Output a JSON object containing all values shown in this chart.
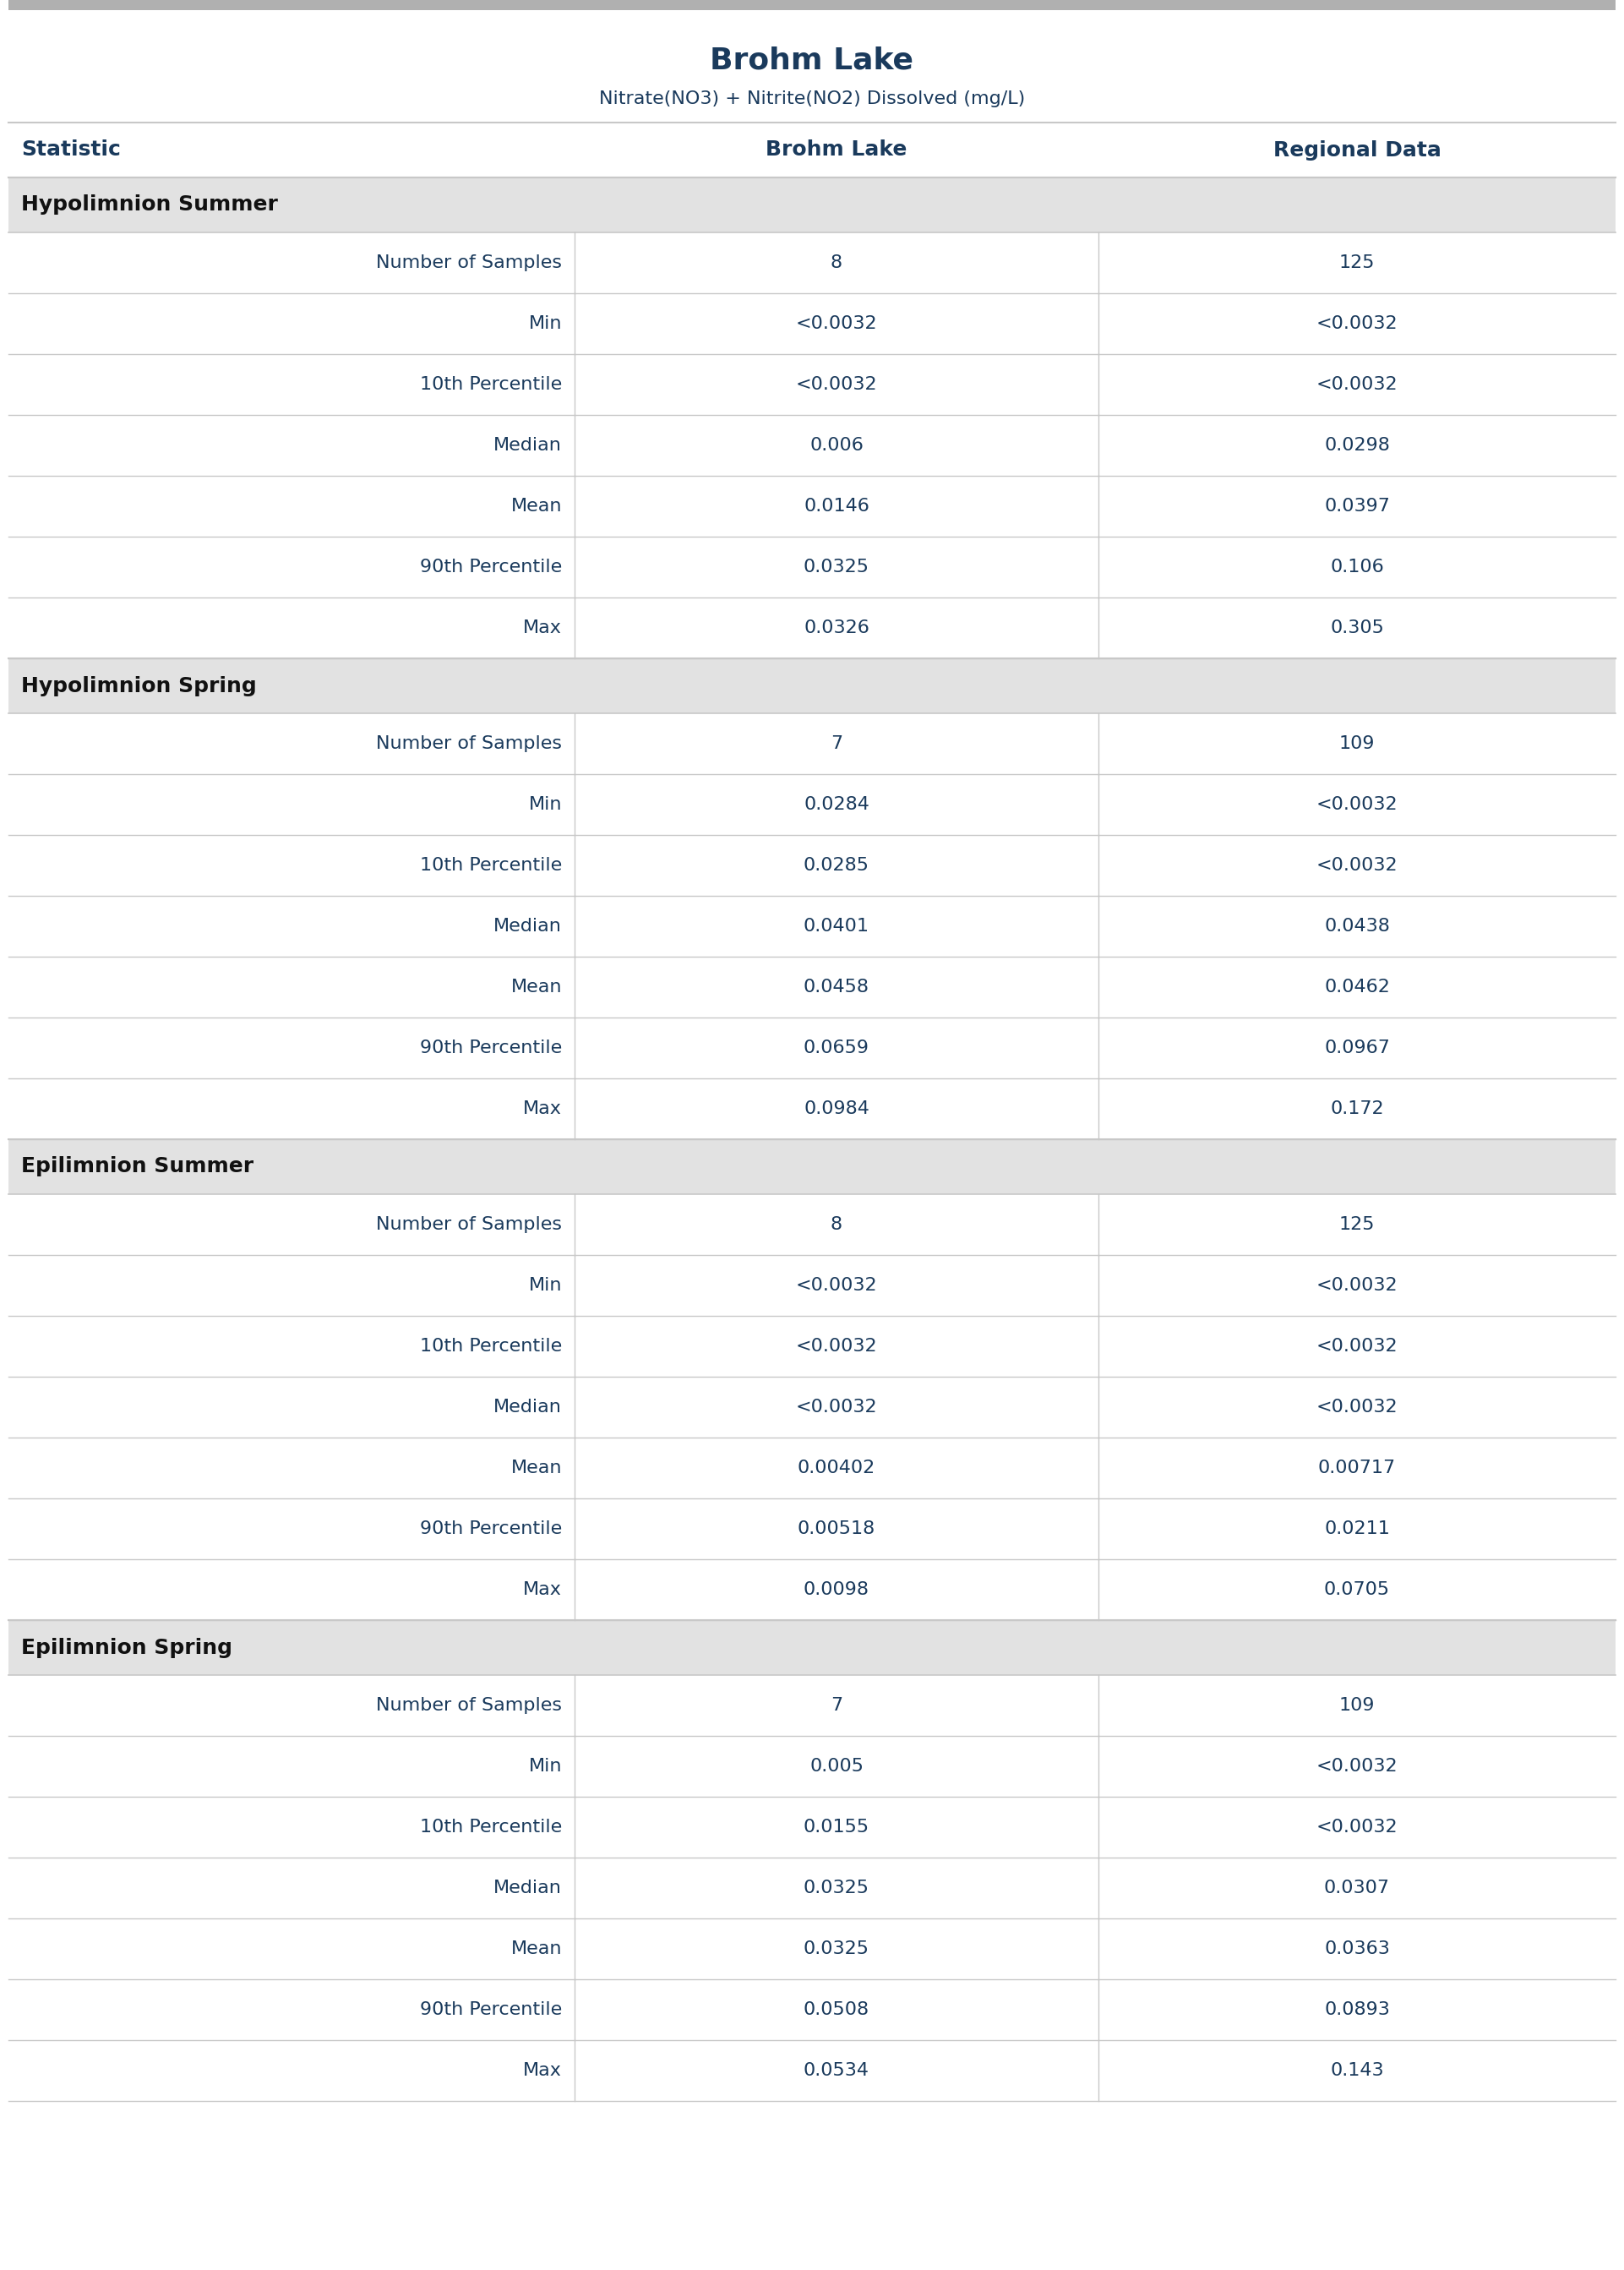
{
  "title": "Brohm Lake",
  "subtitle": "Nitrate(NO3) + Nitrite(NO2) Dissolved (mg/L)",
  "col_headers": [
    "Statistic",
    "Brohm Lake",
    "Regional Data"
  ],
  "sections": [
    {
      "header": "Hypolimnion Summer",
      "rows": [
        [
          "Number of Samples",
          "8",
          "125"
        ],
        [
          "Min",
          "<0.0032",
          "<0.0032"
        ],
        [
          "10th Percentile",
          "<0.0032",
          "<0.0032"
        ],
        [
          "Median",
          "0.006",
          "0.0298"
        ],
        [
          "Mean",
          "0.0146",
          "0.0397"
        ],
        [
          "90th Percentile",
          "0.0325",
          "0.106"
        ],
        [
          "Max",
          "0.0326",
          "0.305"
        ]
      ]
    },
    {
      "header": "Hypolimnion Spring",
      "rows": [
        [
          "Number of Samples",
          "7",
          "109"
        ],
        [
          "Min",
          "0.0284",
          "<0.0032"
        ],
        [
          "10th Percentile",
          "0.0285",
          "<0.0032"
        ],
        [
          "Median",
          "0.0401",
          "0.0438"
        ],
        [
          "Mean",
          "0.0458",
          "0.0462"
        ],
        [
          "90th Percentile",
          "0.0659",
          "0.0967"
        ],
        [
          "Max",
          "0.0984",
          "0.172"
        ]
      ]
    },
    {
      "header": "Epilimnion Summer",
      "rows": [
        [
          "Number of Samples",
          "8",
          "125"
        ],
        [
          "Min",
          "<0.0032",
          "<0.0032"
        ],
        [
          "10th Percentile",
          "<0.0032",
          "<0.0032"
        ],
        [
          "Median",
          "<0.0032",
          "<0.0032"
        ],
        [
          "Mean",
          "0.00402",
          "0.00717"
        ],
        [
          "90th Percentile",
          "0.00518",
          "0.0211"
        ],
        [
          "Max",
          "0.0098",
          "0.0705"
        ]
      ]
    },
    {
      "header": "Epilimnion Spring",
      "rows": [
        [
          "Number of Samples",
          "7",
          "109"
        ],
        [
          "Min",
          "0.005",
          "<0.0032"
        ],
        [
          "10th Percentile",
          "0.0155",
          "<0.0032"
        ],
        [
          "Median",
          "0.0325",
          "0.0307"
        ],
        [
          "Mean",
          "0.0325",
          "0.0363"
        ],
        [
          "90th Percentile",
          "0.0508",
          "0.0893"
        ],
        [
          "Max",
          "0.0534",
          "0.143"
        ]
      ]
    }
  ],
  "title_color": "#1a3a5c",
  "subtitle_color": "#1a3a5c",
  "header_bg_color": "#e2e2e2",
  "header_text_color": "#111111",
  "col_header_text_color": "#1a3a5c",
  "stat_text_color": "#1a3a5c",
  "value_text_color": "#1a3a5c",
  "divider_color": "#c8c8c8",
  "top_bar_color": "#b0b0b0",
  "bg_color": "#ffffff",
  "title_fontsize": 26,
  "subtitle_fontsize": 16,
  "col_header_fontsize": 18,
  "section_header_fontsize": 18,
  "row_fontsize": 16
}
